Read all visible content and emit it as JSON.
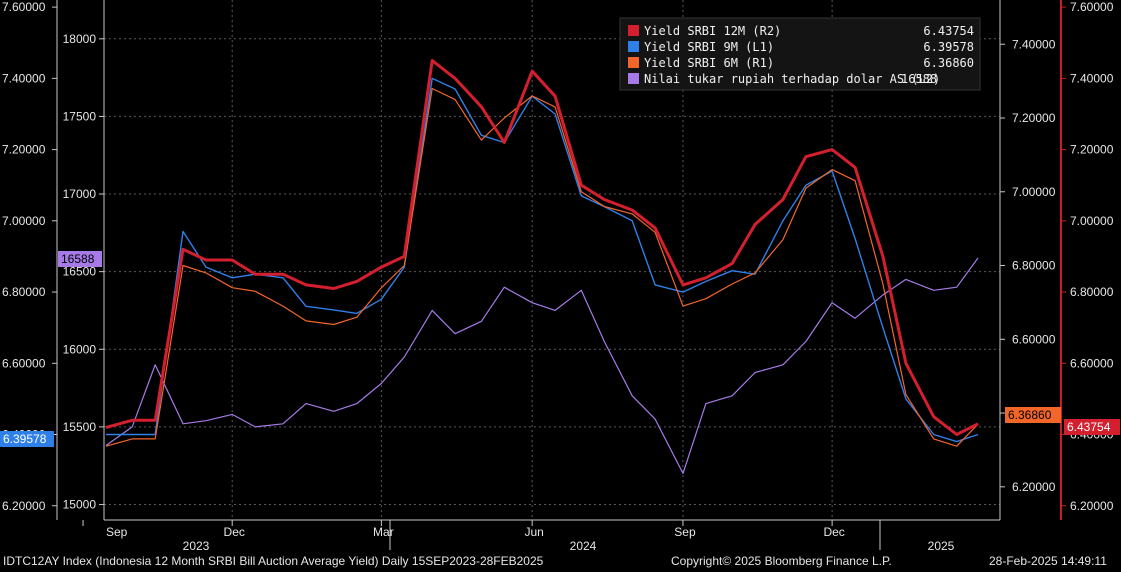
{
  "footer": {
    "description": "IDTC12AY Index (Indonesia 12 Month SRBI Bill Auction Average Yield)  Daily 15SEP2023-28FEB2025",
    "copyright": "Copyright© 2025 Bloomberg Finance L.P.",
    "timestamp": "28-Feb-2025 14:49:11"
  },
  "colors": {
    "y12m": "#d41f2e",
    "y9m": "#2f7fe8",
    "y6m": "#f2662a",
    "fx": "#a67be8",
    "grid": "#5a5a5a",
    "axis": "#c81e28"
  },
  "chart_data": {
    "type": "line",
    "legend": [
      {
        "name": "Yield SRBI 12M (R2)",
        "value": "6.43754",
        "color": "#d41f2e"
      },
      {
        "name": "Yield SRBI 9M (L1)",
        "value": "6.39578",
        "color": "#2f7fe8"
      },
      {
        "name": "Yield SRBI 6M (R1)",
        "value": "6.36860",
        "color": "#f2662a"
      },
      {
        "name": "Nilai tukar rupiah terhadap dolar AS (L2)",
        "value": "16588",
        "color": "#a67be8"
      }
    ],
    "x_month_ticks": [
      "Sep",
      "Dec",
      "Mar",
      "Jun",
      "Sep",
      "Dec"
    ],
    "x_year_labels": [
      "2023",
      "2024",
      "2025"
    ],
    "axes": {
      "L1": {
        "ticks": [
          "7.60000",
          "7.40000",
          "7.20000",
          "7.00000",
          "6.80000",
          "6.60000",
          "6.40000",
          "6.20000"
        ],
        "ylim": [
          6.16,
          7.62
        ]
      },
      "L2": {
        "ticks": [
          "18000",
          "17500",
          "17000",
          "16500",
          "16000",
          "15500",
          "15000"
        ],
        "ylim": [
          14900,
          18250
        ]
      },
      "R1": {
        "ticks": [
          "7.40000",
          "7.20000",
          "7.00000",
          "6.80000",
          "6.60000",
          "6.40000",
          "6.20000"
        ],
        "ylim": [
          6.11,
          7.52
        ]
      },
      "R2": {
        "ticks": [
          "7.60000",
          "7.40000",
          "7.20000",
          "7.00000",
          "6.80000",
          "6.60000",
          "6.40000",
          "6.20000"
        ],
        "ylim": [
          6.16,
          7.62
        ]
      }
    },
    "last_value_tags": {
      "L1": "6.39578",
      "L2": "16588",
      "R1": "6.36860",
      "R2": "6.43754"
    },
    "x": [
      "2023-09-15",
      "2023-10-01",
      "2023-10-15",
      "2023-11-01",
      "2023-11-15",
      "2023-12-01",
      "2023-12-15",
      "2024-01-01",
      "2024-01-15",
      "2024-02-01",
      "2024-02-15",
      "2024-03-01",
      "2024-03-15",
      "2024-04-01",
      "2024-04-15",
      "2024-05-01",
      "2024-05-15",
      "2024-06-01",
      "2024-06-15",
      "2024-07-01",
      "2024-07-15",
      "2024-08-01",
      "2024-08-15",
      "2024-09-01",
      "2024-09-15",
      "2024-10-01",
      "2024-10-15",
      "2024-11-01",
      "2024-11-15",
      "2024-12-01",
      "2024-12-15",
      "2025-01-01",
      "2025-01-15",
      "2025-02-01",
      "2025-02-15",
      "2025-02-28"
    ],
    "series": [
      {
        "name": "Yield SRBI 12M (R2)",
        "axis": "R2",
        "values": [
          6.42,
          6.44,
          6.44,
          6.92,
          6.89,
          6.89,
          6.85,
          6.85,
          6.82,
          6.81,
          6.83,
          6.87,
          6.9,
          7.45,
          7.4,
          7.32,
          7.22,
          7.42,
          7.35,
          7.1,
          7.06,
          7.03,
          6.98,
          6.82,
          6.84,
          6.88,
          6.99,
          7.06,
          7.18,
          7.2,
          7.15,
          6.9,
          6.6,
          6.45,
          6.4,
          6.43
        ]
      },
      {
        "name": "Yield SRBI 9M (L1)",
        "axis": "L1",
        "values": [
          6.4,
          6.4,
          6.4,
          6.97,
          6.87,
          6.84,
          6.85,
          6.84,
          6.76,
          6.75,
          6.74,
          6.78,
          6.87,
          7.4,
          7.37,
          7.24,
          7.22,
          7.35,
          7.3,
          7.07,
          7.04,
          7.0,
          6.82,
          6.8,
          6.83,
          6.86,
          6.85,
          7.0,
          7.1,
          7.14,
          6.95,
          6.7,
          6.5,
          6.4,
          6.38,
          6.4
        ]
      },
      {
        "name": "Yield SRBI 6M (R1)",
        "axis": "R1",
        "values": [
          6.31,
          6.33,
          6.33,
          6.8,
          6.78,
          6.74,
          6.73,
          6.69,
          6.65,
          6.64,
          6.66,
          6.74,
          6.8,
          7.28,
          7.25,
          7.14,
          7.2,
          7.26,
          7.23,
          7.0,
          6.96,
          6.94,
          6.89,
          6.69,
          6.71,
          6.75,
          6.78,
          6.87,
          7.01,
          7.06,
          7.03,
          6.75,
          6.45,
          6.33,
          6.31,
          6.37
        ]
      },
      {
        "name": "Nilai tukar rupiah terhadap dolar AS (L2)",
        "axis": "L2",
        "values": [
          15380,
          15500,
          15900,
          15520,
          15540,
          15580,
          15500,
          15520,
          15650,
          15600,
          15650,
          15780,
          15950,
          16250,
          16100,
          16180,
          16400,
          16300,
          16250,
          16380,
          16050,
          15700,
          15550,
          15200,
          15650,
          15700,
          15850,
          15900,
          16050,
          16300,
          16200,
          16350,
          16450,
          16380,
          16400,
          16588
        ]
      }
    ]
  }
}
